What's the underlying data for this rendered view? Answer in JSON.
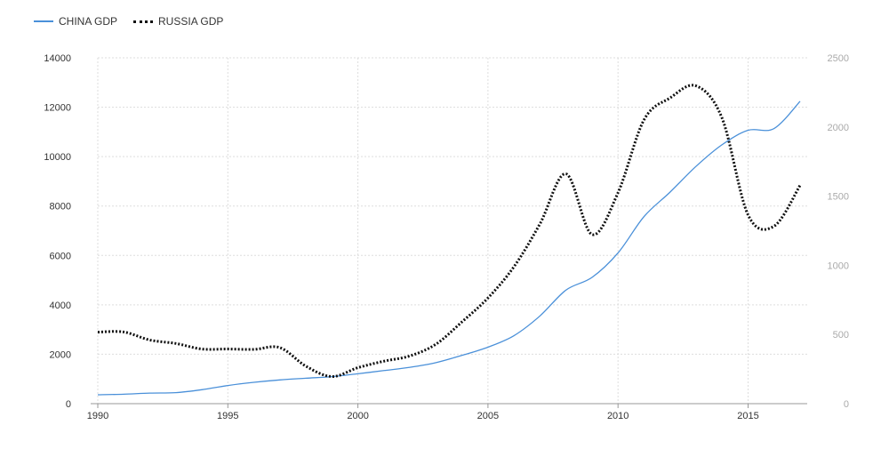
{
  "legend": {
    "china_label": "CHINA GDP",
    "russia_label": "RUSSIA GDP"
  },
  "colors": {
    "china": "#4a90d9",
    "russia": "#111111",
    "left_axis_text": "#333333",
    "right_axis_text": "#aaaaaa",
    "grid": "#dddddd"
  },
  "chart_data": {
    "type": "line",
    "title": "",
    "xlabel": "",
    "ylabel": "",
    "grid": true,
    "legend_position": "top-left",
    "x_ticks": [
      1990,
      1995,
      2000,
      2005,
      2010,
      2015
    ],
    "y_left": {
      "range": [
        0,
        14000
      ],
      "ticks": [
        0,
        2000,
        4000,
        6000,
        8000,
        10000,
        12000,
        14000
      ]
    },
    "y_right": {
      "range": [
        0,
        2500
      ],
      "ticks": [
        0,
        500,
        1000,
        1500,
        2000,
        2500
      ]
    },
    "x": [
      1990,
      1991,
      1992,
      1993,
      1994,
      1995,
      1996,
      1997,
      1998,
      1999,
      2000,
      2001,
      2002,
      2003,
      2004,
      2005,
      2006,
      2007,
      2008,
      2009,
      2010,
      2011,
      2012,
      2013,
      2014,
      2015,
      2016,
      2017
    ],
    "series": [
      {
        "name": "CHINA GDP",
        "axis": "left",
        "style": "solid",
        "values": [
          360,
          383,
          427,
          445,
          564,
          734,
          863,
          961,
          1029,
          1094,
          1211,
          1339,
          1471,
          1660,
          1955,
          2286,
          2752,
          3552,
          4598,
          5110,
          6101,
          7573,
          8561,
          9607,
          10482,
          11065,
          11138,
          12238
        ]
      },
      {
        "name": "RUSSIA GDP",
        "axis": "right",
        "style": "dotted",
        "values": [
          517,
          518,
          460,
          435,
          395,
          395,
          392,
          405,
          271,
          196,
          260,
          307,
          345,
          430,
          591,
          764,
          990,
          1300,
          1661,
          1223,
          1525,
          2052,
          2210,
          2297,
          2064,
          1364,
          1283,
          1578
        ]
      }
    ]
  }
}
